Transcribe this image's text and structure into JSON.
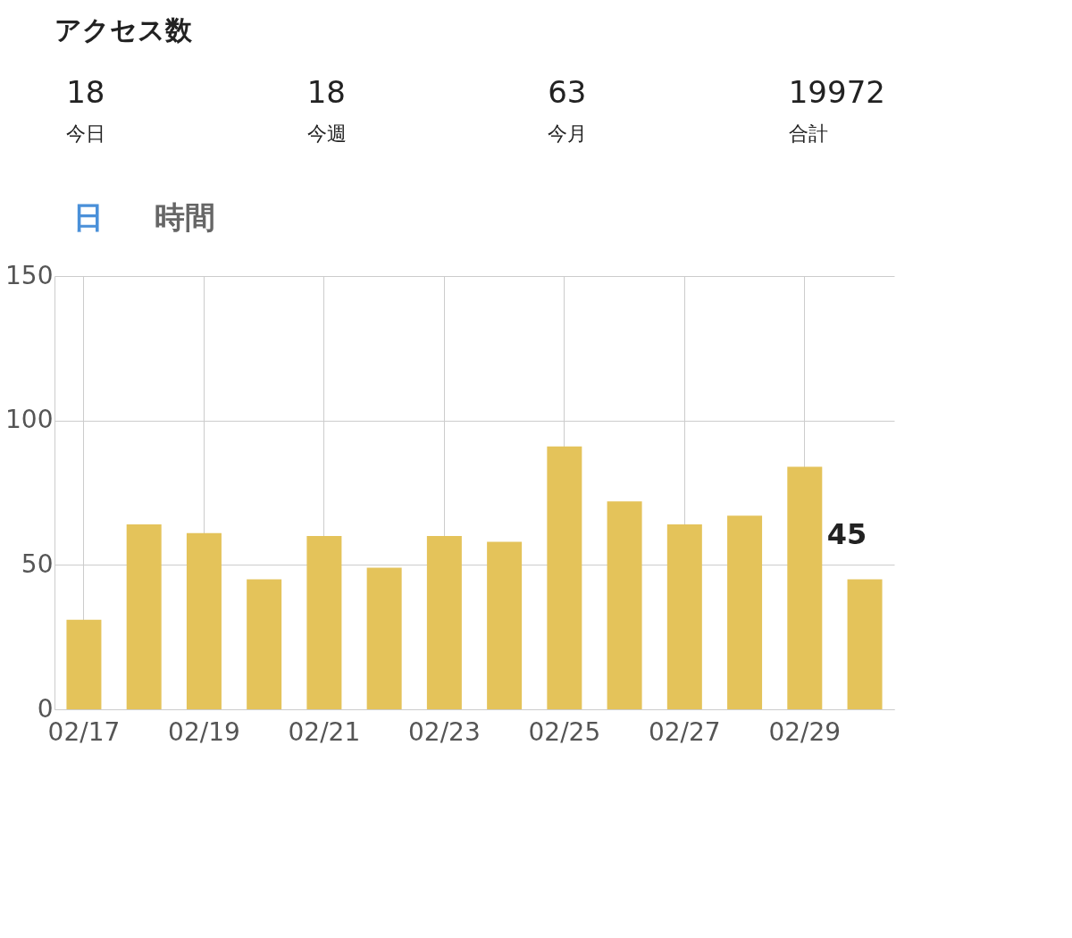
{
  "chart_data": [
    {
      "type": "other",
      "title": "アクセス数",
      "annotations": [
        "18",
        "今日",
        "18",
        "今週",
        "63",
        "今月",
        "19972",
        "合計"
      ]
    },
    {
      "type": "bar",
      "annotations": [
        "日",
        "時間"
      ],
      "categories": [
        "02/17",
        null,
        "02/19",
        null,
        "02/21",
        null,
        "02/23",
        null,
        "02/25",
        null,
        "02/27",
        null,
        "02/29",
        null
      ],
      "values": [
        31,
        64,
        61,
        45,
        60,
        49,
        60,
        58,
        91,
        72,
        64,
        67,
        84,
        45
      ],
      "value_labels": [
        null,
        null,
        null,
        null,
        null,
        null,
        null,
        null,
        null,
        null,
        null,
        null,
        null,
        "45"
      ],
      "color": "#e4c35a",
      "ylim": [
        0,
        150
      ],
      "yticks": [
        0,
        50,
        100,
        150
      ],
      "grid": true
    }
  ]
}
